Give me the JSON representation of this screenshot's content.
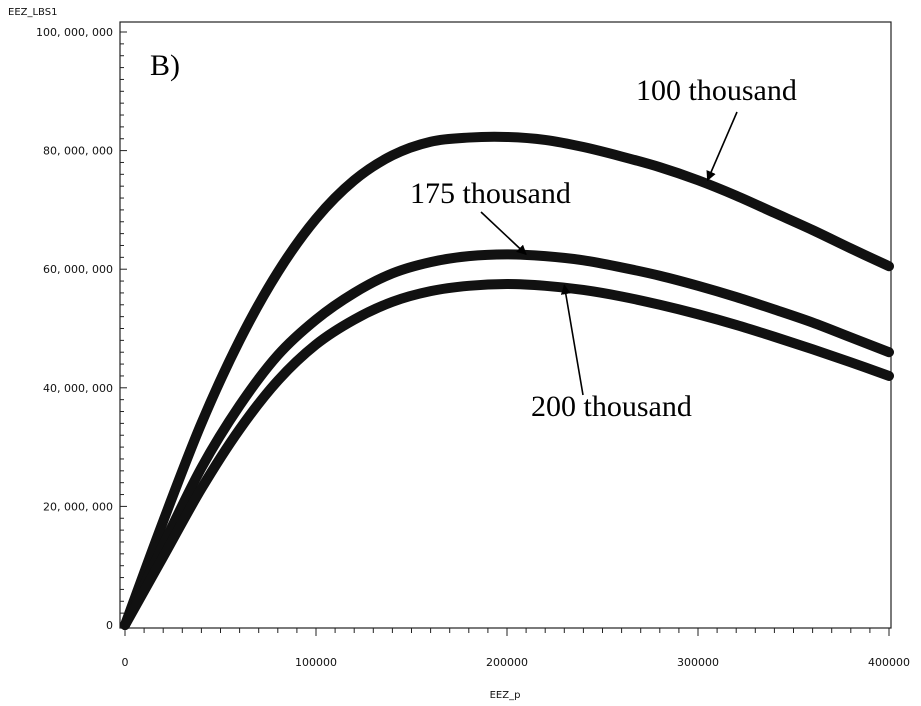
{
  "chart_data": {
    "type": "line",
    "panel_label": "B)",
    "xlabel": "EEZ_p",
    "ylabel": "EEZ_LBS1",
    "xlim": [
      0,
      400000
    ],
    "ylim": [
      0,
      100000000
    ],
    "x_ticks": [
      0,
      100000,
      200000,
      300000,
      400000
    ],
    "x_tick_labels": [
      "0",
      "100000",
      "200000",
      "300000",
      "400000"
    ],
    "y_ticks": [
      0,
      20000000,
      40000000,
      60000000,
      80000000,
      100000000
    ],
    "y_tick_labels": [
      "0",
      "20, 000, 000",
      "40, 000, 000",
      "60, 000, 000",
      "80, 000, 000",
      "100, 000, 000"
    ],
    "x": [
      0,
      20000,
      40000,
      60000,
      80000,
      100000,
      120000,
      140000,
      160000,
      180000,
      200000,
      220000,
      240000,
      260000,
      280000,
      300000,
      320000,
      340000,
      360000,
      380000,
      400000
    ],
    "series": [
      {
        "values": [
          0,
          17500000,
          34000000,
          48000000,
          59500000,
          68500000,
          75000000,
          79200000,
          81500000,
          82200000,
          82300000,
          81800000,
          80600000,
          79000000,
          77200000,
          75000000,
          72400000,
          69500000,
          66600000,
          63500000,
          60500000
        ]
      },
      {
        "values": [
          0,
          13500000,
          26500000,
          37000000,
          45500000,
          51500000,
          56000000,
          59300000,
          61200000,
          62200000,
          62500000,
          62200000,
          61500000,
          60300000,
          58900000,
          57200000,
          55300000,
          53200000,
          51000000,
          48500000,
          46000000
        ]
      },
      {
        "values": [
          0,
          11500000,
          23000000,
          33000000,
          41200000,
          47300000,
          51500000,
          54500000,
          56300000,
          57200000,
          57500000,
          57200000,
          56500000,
          55400000,
          54000000,
          52400000,
          50600000,
          48600000,
          46500000,
          44300000,
          42000000
        ]
      }
    ],
    "annotations": [
      {
        "text": "100 thousand",
        "target": [
          305000,
          75000000
        ]
      },
      {
        "text": "175 thousand",
        "target": [
          210000,
          62500000
        ]
      },
      {
        "text": "200 thousand",
        "target": [
          230000,
          57300000
        ]
      }
    ]
  }
}
